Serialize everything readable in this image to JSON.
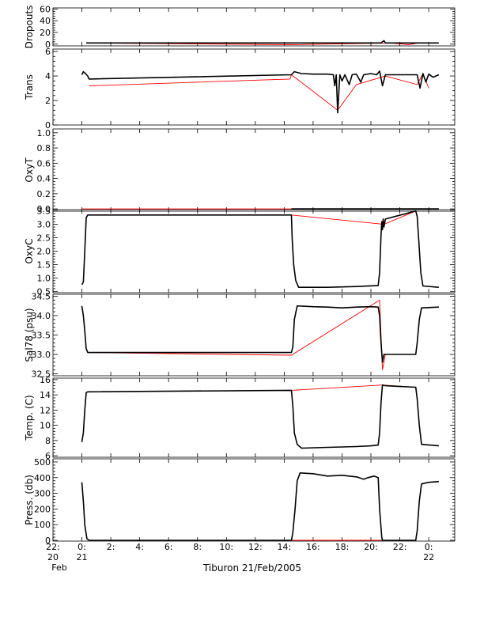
{
  "chart_data": {
    "type": "line",
    "title": "Tiburon 21/Feb/2005",
    "colors": {
      "raw": "#000000",
      "interpolated": "#ff0000"
    },
    "x_ticks": [
      {
        "hour": 22,
        "label": "22:",
        "sub": "20",
        "sub2": "Feb"
      },
      {
        "hour": 24,
        "label": "0:",
        "sub": "21"
      },
      {
        "hour": 26,
        "label": "2:"
      },
      {
        "hour": 28,
        "label": "4:"
      },
      {
        "hour": 30,
        "label": "6:"
      },
      {
        "hour": 32,
        "label": "8:"
      },
      {
        "hour": 34,
        "label": "10:"
      },
      {
        "hour": 36,
        "label": "12:"
      },
      {
        "hour": 38,
        "label": "14:"
      },
      {
        "hour": 40,
        "label": "16:"
      },
      {
        "hour": 42,
        "label": "18:"
      },
      {
        "hour": 44,
        "label": "20:"
      },
      {
        "hour": 46,
        "label": "22:"
      },
      {
        "hour": 48,
        "label": "0:",
        "sub": "22"
      }
    ],
    "xlim": [
      22,
      49.8
    ],
    "panels": [
      {
        "id": "dropouts",
        "ylabel": "Dropouts",
        "ylim": [
          -3,
          62
        ],
        "yticks": [
          {
            "v": 0,
            "l": "0"
          },
          {
            "v": 20,
            "l": "20"
          },
          {
            "v": 40,
            "l": "40"
          },
          {
            "v": 60,
            "l": "60"
          }
        ],
        "black": [
          [
            24.3,
            2
          ],
          [
            38.5,
            2
          ],
          [
            39.5,
            2
          ],
          [
            41.5,
            2
          ],
          [
            43.5,
            2
          ],
          [
            44.7,
            2
          ],
          [
            44.9,
            6
          ],
          [
            45.0,
            2
          ],
          [
            45.3,
            2
          ],
          [
            46.5,
            2
          ],
          [
            47.3,
            2
          ],
          [
            48.0,
            2
          ],
          [
            48.7,
            2
          ]
        ],
        "red": [
          [
            24.3,
            2
          ],
          [
            38.5,
            -1
          ],
          [
            45.4,
            2
          ],
          [
            46.6,
            -1
          ],
          [
            47.3,
            2
          ]
        ]
      },
      {
        "id": "trans",
        "ylabel": "Trans",
        "ylim": [
          0,
          6.2
        ],
        "yticks": [
          {
            "v": 0,
            "l": "0"
          },
          {
            "v": 2,
            "l": "2"
          },
          {
            "v": 4,
            "l": "4"
          },
          {
            "v": 6,
            "l": "6"
          }
        ],
        "black": [
          [
            24.0,
            4.1
          ],
          [
            24.1,
            4.35
          ],
          [
            24.25,
            4.2
          ],
          [
            24.4,
            4.0
          ],
          [
            24.5,
            3.75
          ],
          [
            38.5,
            4.1
          ],
          [
            38.7,
            4.35
          ],
          [
            39.2,
            4.2
          ],
          [
            40.0,
            4.15
          ],
          [
            41.0,
            4.15
          ],
          [
            41.4,
            4.1
          ],
          [
            41.5,
            3.2
          ],
          [
            41.6,
            4.1
          ],
          [
            41.7,
            1.0
          ],
          [
            41.85,
            4.1
          ],
          [
            42.0,
            3.6
          ],
          [
            42.2,
            4.1
          ],
          [
            42.5,
            3.3
          ],
          [
            42.7,
            4.1
          ],
          [
            43.0,
            4.15
          ],
          [
            43.3,
            3.5
          ],
          [
            43.5,
            4.1
          ],
          [
            44.0,
            4.2
          ],
          [
            44.4,
            4.1
          ],
          [
            44.6,
            4.4
          ],
          [
            44.8,
            3.2
          ],
          [
            45.0,
            4.1
          ],
          [
            47.2,
            4.1
          ],
          [
            47.4,
            3.0
          ],
          [
            47.6,
            4.2
          ],
          [
            47.8,
            3.5
          ],
          [
            48.0,
            4.15
          ],
          [
            48.3,
            3.9
          ],
          [
            48.7,
            4.1
          ]
        ],
        "red": [
          [
            24.5,
            3.2
          ],
          [
            38.4,
            3.75
          ],
          [
            38.5,
            4.1
          ],
          [
            41.7,
            1.2
          ],
          [
            43.0,
            3.3
          ],
          [
            45.0,
            4.0
          ],
          [
            47.2,
            3.3
          ],
          [
            47.6,
            4.2
          ],
          [
            48.0,
            3.0
          ]
        ]
      },
      {
        "id": "oxyt",
        "ylabel": "OxyT",
        "ylim": [
          -0.03,
          1.05
        ],
        "yticks": [
          {
            "v": 0,
            "l": "0.0"
          },
          {
            "v": 0.2,
            "l": "0.2"
          },
          {
            "v": 0.4,
            "l": "0.4"
          },
          {
            "v": 0.6,
            "l": "0.6"
          },
          {
            "v": 0.8,
            "l": "0.8"
          },
          {
            "v": 1.0,
            "l": "1.0"
          }
        ],
        "black": [
          [
            38.5,
            0.0
          ],
          [
            45.0,
            0.0
          ],
          [
            46.6,
            0.0
          ],
          [
            48.7,
            0.0
          ]
        ],
        "red": [
          [
            24.0,
            0.0
          ],
          [
            48.7,
            0.0
          ]
        ]
      },
      {
        "id": "oxyc",
        "ylabel": "OxyC",
        "ylim": [
          0.45,
          3.55
        ],
        "yticks": [
          {
            "v": 0.5,
            "l": "0.5"
          },
          {
            "v": 1.0,
            "l": "1.0"
          },
          {
            "v": 1.5,
            "l": "1.5"
          },
          {
            "v": 2.0,
            "l": "2.0"
          },
          {
            "v": 2.5,
            "l": "2.5"
          },
          {
            "v": 3.0,
            "l": "3.0"
          },
          {
            "v": 3.5,
            "l": "3.5"
          }
        ],
        "black": [
          [
            24.0,
            0.75
          ],
          [
            24.1,
            0.85
          ],
          [
            24.2,
            2.0
          ],
          [
            24.3,
            3.25
          ],
          [
            24.4,
            3.35
          ],
          [
            38.5,
            3.35
          ],
          [
            38.55,
            2.5
          ],
          [
            38.65,
            1.5
          ],
          [
            38.8,
            0.9
          ],
          [
            39.0,
            0.65
          ],
          [
            41.0,
            0.65
          ],
          [
            43.0,
            0.68
          ],
          [
            44.5,
            0.72
          ],
          [
            44.6,
            1.2
          ],
          [
            44.7,
            2.6
          ],
          [
            44.75,
            3.1
          ],
          [
            44.8,
            2.8
          ],
          [
            44.85,
            3.2
          ],
          [
            44.9,
            2.9
          ],
          [
            45.0,
            3.2
          ],
          [
            47.1,
            3.5
          ],
          [
            47.2,
            3.3
          ],
          [
            47.3,
            2.5
          ],
          [
            47.45,
            1.2
          ],
          [
            47.6,
            0.7
          ],
          [
            48.7,
            0.65
          ]
        ],
        "red": [
          [
            24.4,
            3.35
          ],
          [
            38.5,
            3.35
          ],
          [
            44.9,
            3.0
          ],
          [
            47.1,
            3.5
          ]
        ]
      },
      {
        "id": "sal78",
        "ylabel": "Sal78 (psu)",
        "ylim": [
          32.45,
          34.55
        ],
        "yticks": [
          {
            "v": 32.5,
            "l": "32.5"
          },
          {
            "v": 33.0,
            "l": "33.0"
          },
          {
            "v": 33.5,
            "l": "33.5"
          },
          {
            "v": 34.0,
            "l": "34.0"
          },
          {
            "v": 34.5,
            "l": "34.5"
          }
        ],
        "black": [
          [
            24.0,
            34.25
          ],
          [
            24.1,
            34.0
          ],
          [
            24.2,
            33.6
          ],
          [
            24.3,
            33.15
          ],
          [
            24.4,
            33.05
          ],
          [
            38.5,
            33.05
          ],
          [
            38.6,
            33.2
          ],
          [
            38.7,
            33.9
          ],
          [
            38.9,
            34.25
          ],
          [
            40.0,
            34.23
          ],
          [
            41.0,
            34.22
          ],
          [
            42.0,
            34.2
          ],
          [
            43.0,
            34.22
          ],
          [
            44.0,
            34.23
          ],
          [
            44.5,
            34.22
          ],
          [
            44.6,
            34.0
          ],
          [
            44.7,
            33.3
          ],
          [
            44.8,
            32.8
          ],
          [
            44.9,
            33.0
          ],
          [
            45.0,
            33.0
          ],
          [
            47.1,
            33.0
          ],
          [
            47.2,
            33.3
          ],
          [
            47.35,
            33.9
          ],
          [
            47.5,
            34.2
          ],
          [
            48.7,
            34.22
          ]
        ],
        "red": [
          [
            24.4,
            33.05
          ],
          [
            38.5,
            32.98
          ],
          [
            44.6,
            34.4
          ],
          [
            44.8,
            32.6
          ],
          [
            45.0,
            33.0
          ],
          [
            47.1,
            33.0
          ]
        ]
      },
      {
        "id": "temp",
        "ylabel": "Temp. (C)",
        "ylim": [
          5.8,
          16.2
        ],
        "yticks": [
          {
            "v": 6,
            "l": "6"
          },
          {
            "v": 8,
            "l": "8"
          },
          {
            "v": 10,
            "l": "10"
          },
          {
            "v": 12,
            "l": "12"
          },
          {
            "v": 14,
            "l": "14"
          },
          {
            "v": 16,
            "l": "16"
          }
        ],
        "black": [
          [
            24.0,
            7.8
          ],
          [
            24.1,
            9.0
          ],
          [
            24.2,
            12.0
          ],
          [
            24.3,
            14.3
          ],
          [
            24.4,
            14.4
          ],
          [
            38.5,
            14.6
          ],
          [
            38.6,
            12.5
          ],
          [
            38.7,
            9.0
          ],
          [
            38.9,
            7.5
          ],
          [
            39.2,
            7.0
          ],
          [
            41.0,
            7.1
          ],
          [
            43.0,
            7.2
          ],
          [
            44.0,
            7.3
          ],
          [
            44.5,
            7.4
          ],
          [
            44.6,
            9.0
          ],
          [
            44.7,
            13.0
          ],
          [
            44.8,
            15.3
          ],
          [
            45.0,
            15.2
          ],
          [
            47.1,
            15.0
          ],
          [
            47.2,
            13.5
          ],
          [
            47.35,
            10.0
          ],
          [
            47.5,
            7.5
          ],
          [
            48.7,
            7.3
          ]
        ],
        "red": [
          [
            24.4,
            14.4
          ],
          [
            38.5,
            14.6
          ],
          [
            44.8,
            15.3
          ],
          [
            47.1,
            15.0
          ]
        ]
      },
      {
        "id": "press",
        "ylabel": "Press. (db)",
        "ylim": [
          -5,
          520
        ],
        "yticks": [
          {
            "v": 0,
            "l": "0"
          },
          {
            "v": 100,
            "l": "100"
          },
          {
            "v": 200,
            "l": "200"
          },
          {
            "v": 300,
            "l": "300"
          },
          {
            "v": 400,
            "l": "400"
          },
          {
            "v": 500,
            "l": "500"
          }
        ],
        "black": [
          [
            24.0,
            370
          ],
          [
            24.1,
            250
          ],
          [
            24.2,
            100
          ],
          [
            24.35,
            10
          ],
          [
            24.5,
            0
          ],
          [
            38.5,
            0
          ],
          [
            38.6,
            50
          ],
          [
            38.75,
            200
          ],
          [
            38.9,
            380
          ],
          [
            39.1,
            430
          ],
          [
            40.0,
            425
          ],
          [
            41.0,
            410
          ],
          [
            42.0,
            415
          ],
          [
            43.0,
            405
          ],
          [
            43.5,
            390
          ],
          [
            43.8,
            400
          ],
          [
            44.2,
            410
          ],
          [
            44.5,
            400
          ],
          [
            44.6,
            200
          ],
          [
            44.75,
            20
          ],
          [
            44.8,
            0
          ],
          [
            47.1,
            0
          ],
          [
            47.2,
            60
          ],
          [
            47.35,
            250
          ],
          [
            47.5,
            360
          ],
          [
            48.0,
            370
          ],
          [
            48.7,
            375
          ]
        ],
        "red": [
          [
            24.5,
            0
          ],
          [
            38.5,
            0
          ],
          [
            44.8,
            0
          ],
          [
            47.1,
            0
          ]
        ]
      }
    ]
  }
}
